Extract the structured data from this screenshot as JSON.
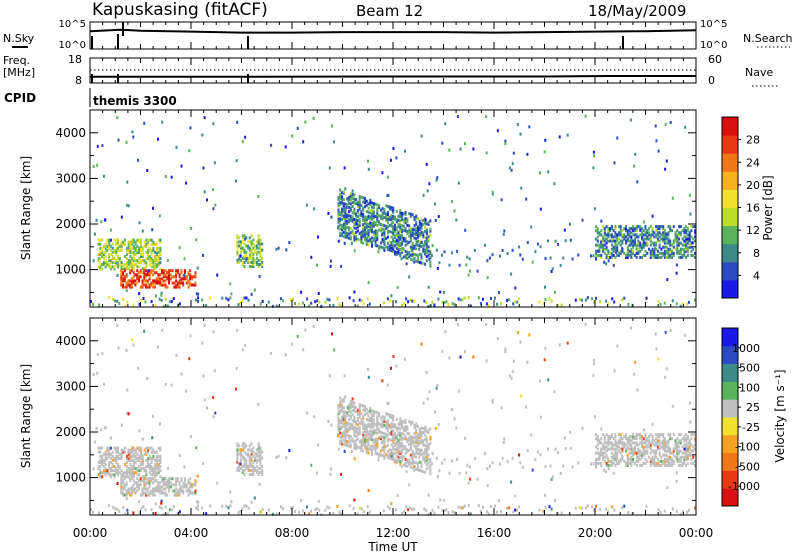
{
  "header": {
    "station": "Kapuskasing (fitACF)",
    "beam": "Beam 12",
    "date": "18/May/2009"
  },
  "noise_panel": {
    "left_label": "N.Sky",
    "right_label": "N.Search",
    "ticks_left": [
      "10^5",
      "10^0"
    ],
    "ticks_right": [
      "10^5",
      "10^0"
    ]
  },
  "freq_panel": {
    "left_label_1": "Freq.",
    "left_label_2": "[MHz]",
    "right_label": "Nave",
    "ticks_left": [
      18,
      8
    ],
    "ticks_right": [
      60,
      0
    ]
  },
  "cpid": {
    "label": "CPID",
    "value": "themis 3300"
  },
  "power_panel": {
    "ylabel": "Slant Range [km]",
    "yticks": [
      1000,
      2000,
      3000,
      4000
    ],
    "ylim": [
      180,
      4500
    ],
    "colorbar": {
      "label": "Power [dB]",
      "ticks": [
        4,
        8,
        12,
        16,
        20,
        24,
        28
      ],
      "colors": [
        "#1a1ae6",
        "#2a4cc0",
        "#3e8a8a",
        "#5cb15c",
        "#bedc2a",
        "#f0e030",
        "#f5b020",
        "#f07818",
        "#e83a14",
        "#d81010"
      ]
    }
  },
  "velocity_panel": {
    "ylabel": "Slant Range [km]",
    "yticks": [
      1000,
      2000,
      3000,
      4000
    ],
    "ylim": [
      180,
      4500
    ],
    "colorbar": {
      "label": "Velocity [m s⁻¹]",
      "ticks": [
        1000,
        500,
        100,
        25,
        -25,
        -100,
        -500,
        -1000
      ],
      "colors": [
        "#1a1ae6",
        "#2a4cc0",
        "#3e8a8a",
        "#5cb15c",
        "#bfbfbf",
        "#f0e030",
        "#f5a020",
        "#f07818",
        "#e83a14",
        "#d81010"
      ]
    }
  },
  "xaxis": {
    "label": "Time UT",
    "ticks": [
      "00:00",
      "04:00",
      "08:00",
      "12:00",
      "16:00",
      "20:00",
      "00:00"
    ]
  },
  "chart_data": [
    {
      "type": "line",
      "title": "Kapuskasing (fitACF)  Beam 12  18/May/2009",
      "series": [
        {
          "name": "N.Sky",
          "x_hours": [
            0,
            1.2,
            2,
            4,
            6,
            8,
            10,
            12,
            14,
            16,
            18,
            20,
            22,
            24
          ],
          "y_log10": [
            3.3,
            3.6,
            3.4,
            3.2,
            3.0,
            3.0,
            3.1,
            3.1,
            3.1,
            3.0,
            3.1,
            3.2,
            3.3,
            3.5
          ]
        },
        {
          "name": "Freq.",
          "x_hours": [
            0,
            1.2,
            6,
            12,
            18,
            20.5,
            24
          ],
          "y": [
            10.5,
            10.5,
            10.5,
            10.6,
            10.6,
            10.8,
            10.8
          ]
        }
      ],
      "xlim": [
        0,
        24
      ],
      "xlabel": "Time UT"
    },
    {
      "type": "heatmap",
      "title": "Power",
      "xlabel": "Time UT",
      "ylabel": "Slant Range [km]",
      "xlim": [
        0,
        24
      ],
      "ylim": [
        180,
        4500
      ],
      "colorbar_label": "Power [dB]",
      "regions": [
        {
          "t": [
            0.3,
            2.8
          ],
          "r": [
            1050,
            1700
          ],
          "db": 14
        },
        {
          "t": [
            1.2,
            4.2
          ],
          "r": [
            650,
            1050
          ],
          "db": 24
        },
        {
          "t": [
            5.8,
            6.8
          ],
          "r": [
            1100,
            1800
          ],
          "db": 12
        },
        {
          "t": [
            9.8,
            13.5
          ],
          "r": [
            1400,
            2400
          ],
          "db": 8
        },
        {
          "t": [
            20,
            24
          ],
          "r": [
            1300,
            2000
          ],
          "db": 8
        }
      ]
    },
    {
      "type": "heatmap",
      "title": "Velocity",
      "xlabel": "Time UT",
      "ylabel": "Slant Range [km]",
      "xlim": [
        0,
        24
      ],
      "ylim": [
        180,
        4500
      ],
      "colorbar_label": "Velocity [m s⁻¹]",
      "regions": [
        {
          "t": [
            0.3,
            2.8
          ],
          "r": [
            1050,
            1700
          ],
          "vel": 0
        },
        {
          "t": [
            1.2,
            4.2
          ],
          "r": [
            650,
            1050
          ],
          "vel": 0
        },
        {
          "t": [
            5.8,
            6.8
          ],
          "r": [
            1100,
            1800
          ],
          "vel": 0
        },
        {
          "t": [
            9.8,
            13.5
          ],
          "r": [
            1400,
            2400
          ],
          "vel": 0
        },
        {
          "t": [
            20,
            24
          ],
          "r": [
            1300,
            2000
          ],
          "vel": 0
        }
      ]
    }
  ]
}
